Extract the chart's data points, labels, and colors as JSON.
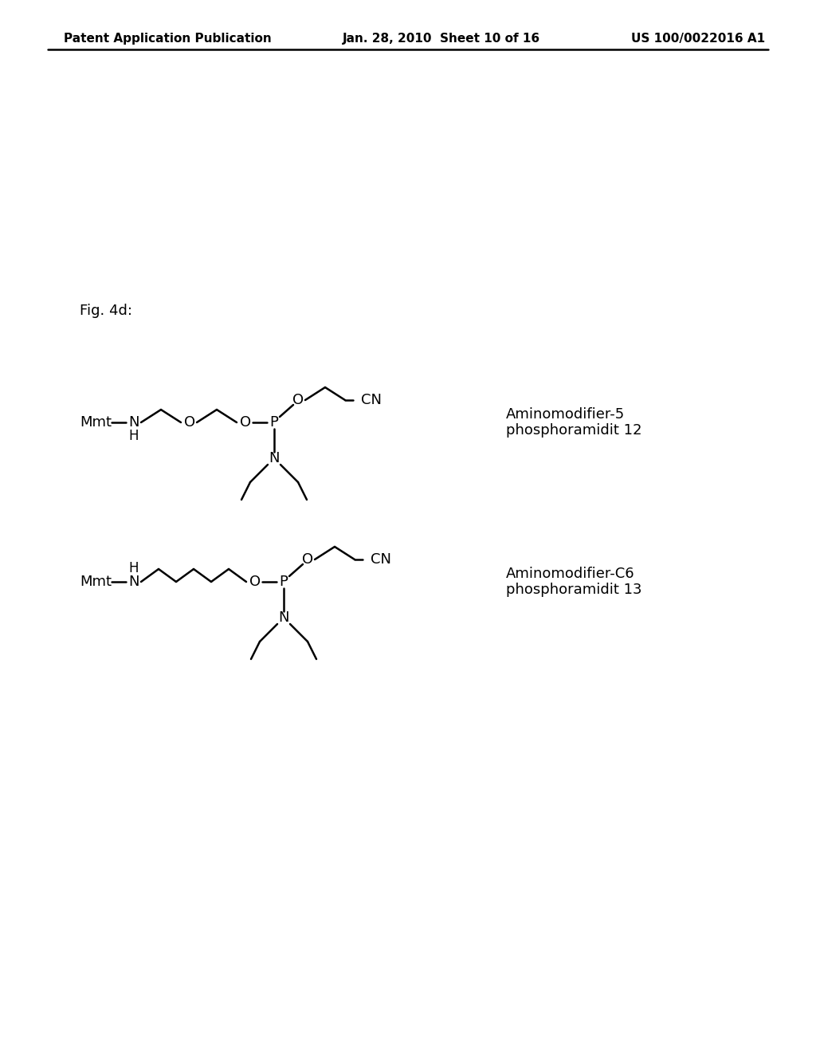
{
  "background_color": "#ffffff",
  "header_left": "Patent Application Publication",
  "header_center": "Jan. 28, 2010  Sheet 10 of 16",
  "header_right": "US 100/0022016 A1",
  "fig_label": "Fig. 4d:",
  "compound1_label": "Aminomodifier-5\nphosphoramidit 12",
  "compound2_label": "Aminomodifier-C6\nphosphoramidit 13",
  "line_color": "#000000",
  "text_color": "#000000",
  "font_size_header": 11,
  "font_size_body": 13,
  "font_size_fig": 13,
  "font_size_atom": 13
}
